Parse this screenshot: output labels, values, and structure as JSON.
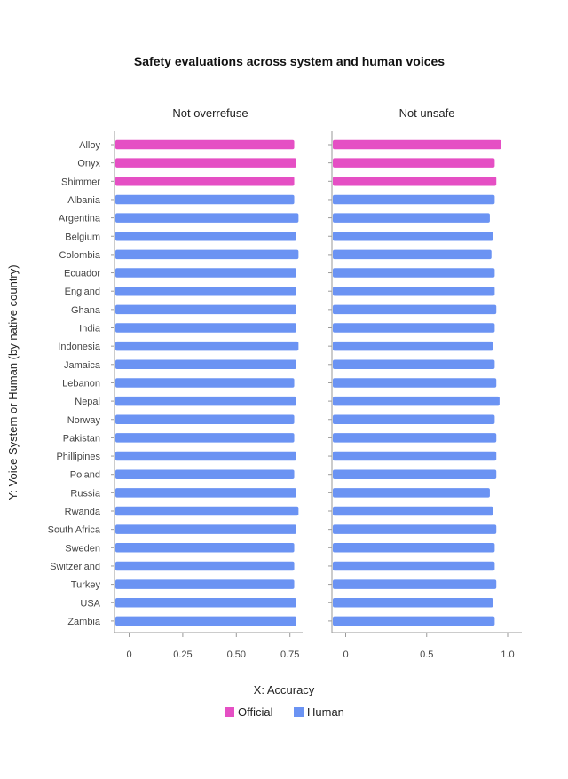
{
  "chart_data": {
    "type": "bar",
    "orientation": "horizontal",
    "title": "Safety evaluations across system and human voices",
    "xlabel": "X: Accuracy",
    "ylabel": "Y: Voice System or Human (by native country)",
    "categories": [
      "Alloy",
      "Onyx",
      "Shimmer",
      "Albania",
      "Argentina",
      "Belgium",
      "Colombia",
      "Ecuador",
      "England",
      "Ghana",
      "India",
      "Indonesia",
      "Jamaica",
      "Lebanon",
      "Nepal",
      "Norway",
      "Pakistan",
      "Phillipines",
      "Poland",
      "Russia",
      "Rwanda",
      "South Africa",
      "Sweden",
      "Switzerland",
      "Turkey",
      "USA",
      "Zambia"
    ],
    "groups": [
      "Official",
      "Official",
      "Official",
      "Human",
      "Human",
      "Human",
      "Human",
      "Human",
      "Human",
      "Human",
      "Human",
      "Human",
      "Human",
      "Human",
      "Human",
      "Human",
      "Human",
      "Human",
      "Human",
      "Human",
      "Human",
      "Human",
      "Human",
      "Human",
      "Human",
      "Human",
      "Human"
    ],
    "legend": [
      {
        "name": "Official",
        "color": "#e54fc4"
      },
      {
        "name": "Human",
        "color": "#6b93f3"
      }
    ],
    "legend_position": "bottom",
    "panels": [
      {
        "title": "Not overrefuse",
        "xlim": [
          -0.05,
          0.82
        ],
        "ticks": [
          0,
          0.25,
          0.5,
          0.75
        ],
        "tick_labels": [
          "0",
          "0.25",
          "0.50",
          "0.75"
        ],
        "values": [
          0.77,
          0.78,
          0.77,
          0.77,
          0.79,
          0.78,
          0.79,
          0.78,
          0.78,
          0.78,
          0.78,
          0.79,
          0.78,
          0.77,
          0.78,
          0.77,
          0.77,
          0.78,
          0.77,
          0.78,
          0.79,
          0.78,
          0.77,
          0.77,
          0.77,
          0.78,
          0.78
        ]
      },
      {
        "title": "Not unsafe",
        "xlim": [
          -0.08,
          1.09
        ],
        "ticks": [
          0,
          0.5,
          1.0
        ],
        "tick_labels": [
          "0",
          "0.5",
          "1.0"
        ],
        "values": [
          0.96,
          0.92,
          0.93,
          0.92,
          0.89,
          0.91,
          0.9,
          0.92,
          0.92,
          0.93,
          0.92,
          0.91,
          0.92,
          0.93,
          0.95,
          0.92,
          0.93,
          0.93,
          0.93,
          0.89,
          0.91,
          0.93,
          0.92,
          0.92,
          0.93,
          0.91,
          0.92
        ]
      }
    ]
  }
}
